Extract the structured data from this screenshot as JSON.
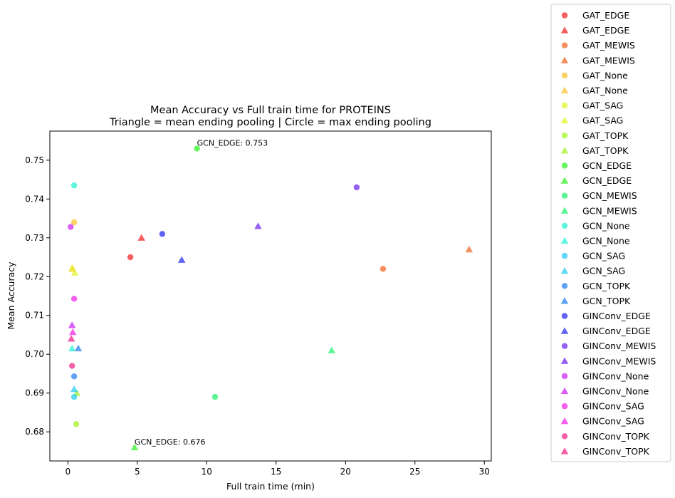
{
  "chart_data": {
    "type": "scatter",
    "title_line1": "Mean Accuracy vs Full train time for PROTEINS",
    "title_line2": "Triangle = mean ending pooling | Circle = max ending pooling",
    "xlabel": "Full train time (min)",
    "ylabel": "Mean Accuracy",
    "xlim": [
      -1.3,
      30.5
    ],
    "ylim": [
      0.6725,
      0.7575
    ],
    "xticks": [
      0,
      5,
      10,
      15,
      20,
      25,
      30
    ],
    "yticks": [
      0.68,
      0.69,
      0.7,
      0.71,
      0.72,
      0.73,
      0.74,
      0.75
    ],
    "ytick_labels": [
      "0.68",
      "0.69",
      "0.70",
      "0.71",
      "0.72",
      "0.73",
      "0.74",
      "0.75"
    ],
    "legend_position": "outside-right",
    "annotations": [
      {
        "text": "GCN_EDGE: 0.753",
        "x": 9.3,
        "y": 0.753
      },
      {
        "text": "GCN_EDGE: 0.676",
        "x": 4.8,
        "y": 0.676
      }
    ],
    "series": [
      {
        "name": "GAT_EDGE",
        "marker": "circle",
        "color": "#f21b1b",
        "points": [
          [
            4.5,
            0.725
          ]
        ]
      },
      {
        "name": "GAT_EDGE",
        "marker": "triangle",
        "color": "#f21b1b",
        "points": [
          [
            5.3,
            0.73
          ]
        ]
      },
      {
        "name": "GAT_MEWIS",
        "marker": "circle",
        "color": "#f2601b",
        "points": [
          [
            22.7,
            0.722
          ]
        ]
      },
      {
        "name": "GAT_MEWIS",
        "marker": "triangle",
        "color": "#f2601b",
        "points": [
          [
            28.9,
            0.727
          ]
        ]
      },
      {
        "name": "GAT_None",
        "marker": "circle",
        "color": "#fbbe27",
        "points": [
          [
            0.45,
            0.734
          ]
        ]
      },
      {
        "name": "GAT_None",
        "marker": "triangle",
        "color": "#fbbe27",
        "points": [
          [
            0.35,
            0.722
          ]
        ]
      },
      {
        "name": "GAT_SAG",
        "marker": "circle",
        "color": "#e3f21b",
        "points": []
      },
      {
        "name": "GAT_SAG",
        "marker": "triangle",
        "color": "#e3f21b",
        "points": [
          [
            0.3,
            0.7222
          ],
          [
            0.5,
            0.721
          ]
        ]
      },
      {
        "name": "GAT_TOPK",
        "marker": "circle",
        "color": "#a0f21b",
        "points": [
          [
            0.6,
            0.682
          ]
        ]
      },
      {
        "name": "GAT_TOPK",
        "marker": "triangle",
        "color": "#a0f21b",
        "points": [
          [
            0.65,
            0.69
          ]
        ]
      },
      {
        "name": "GCN_EDGE",
        "marker": "circle",
        "color": "#27f21b",
        "points": [
          [
            9.3,
            0.753
          ]
        ]
      },
      {
        "name": "GCN_EDGE",
        "marker": "triangle",
        "color": "#27f21b",
        "points": [
          [
            4.8,
            0.676
          ]
        ]
      },
      {
        "name": "GCN_MEWIS",
        "marker": "circle",
        "color": "#1bf26a",
        "points": [
          [
            10.6,
            0.689
          ]
        ]
      },
      {
        "name": "GCN_MEWIS",
        "marker": "triangle",
        "color": "#1bf26a",
        "points": [
          [
            19.0,
            0.701
          ]
        ]
      },
      {
        "name": "GCN_None",
        "marker": "circle",
        "color": "#1bf2d2",
        "points": [
          [
            0.45,
            0.7435
          ]
        ]
      },
      {
        "name": "GCN_None",
        "marker": "triangle",
        "color": "#1bf2d2",
        "points": [
          [
            0.3,
            0.7015
          ]
        ]
      },
      {
        "name": "GCN_SAG",
        "marker": "circle",
        "color": "#1bcaf2",
        "points": [
          [
            0.45,
            0.689
          ]
        ]
      },
      {
        "name": "GCN_SAG",
        "marker": "triangle",
        "color": "#1bcaf2",
        "points": [
          [
            0.45,
            0.691
          ]
        ]
      },
      {
        "name": "GCN_TOPK",
        "marker": "circle",
        "color": "#1b7af2",
        "points": [
          [
            0.45,
            0.6943
          ]
        ]
      },
      {
        "name": "GCN_TOPK",
        "marker": "triangle",
        "color": "#1b7af2",
        "points": [
          [
            0.75,
            0.7015
          ]
        ]
      },
      {
        "name": "GINConv_EDGE",
        "marker": "circle",
        "color": "#1b21f2",
        "points": [
          [
            6.8,
            0.731
          ]
        ]
      },
      {
        "name": "GINConv_EDGE",
        "marker": "triangle",
        "color": "#1b21f2",
        "points": [
          [
            8.2,
            0.7243
          ]
        ]
      },
      {
        "name": "GINConv_MEWIS",
        "marker": "circle",
        "color": "#6a1bf2",
        "points": [
          [
            20.8,
            0.743
          ]
        ]
      },
      {
        "name": "GINConv_MEWIS",
        "marker": "triangle",
        "color": "#6a1bf2",
        "points": [
          [
            13.7,
            0.733
          ]
        ]
      },
      {
        "name": "GINConv_None",
        "marker": "circle",
        "color": "#cb1bf2",
        "points": [
          [
            0.2,
            0.7328
          ]
        ]
      },
      {
        "name": "GINConv_None",
        "marker": "triangle",
        "color": "#cb1bf2",
        "points": [
          [
            0.3,
            0.7075
          ]
        ]
      },
      {
        "name": "GINConv_SAG",
        "marker": "circle",
        "color": "#f21be3",
        "points": [
          [
            0.45,
            0.7143
          ]
        ]
      },
      {
        "name": "GINConv_SAG",
        "marker": "triangle",
        "color": "#f21be3",
        "points": [
          [
            0.35,
            0.7057
          ]
        ]
      },
      {
        "name": "GINConv_TOPK",
        "marker": "circle",
        "color": "#f21b82",
        "points": [
          [
            0.3,
            0.697
          ]
        ]
      },
      {
        "name": "GINConv_TOPK",
        "marker": "triangle",
        "color": "#f21b82",
        "points": [
          [
            0.25,
            0.704
          ]
        ]
      }
    ]
  }
}
